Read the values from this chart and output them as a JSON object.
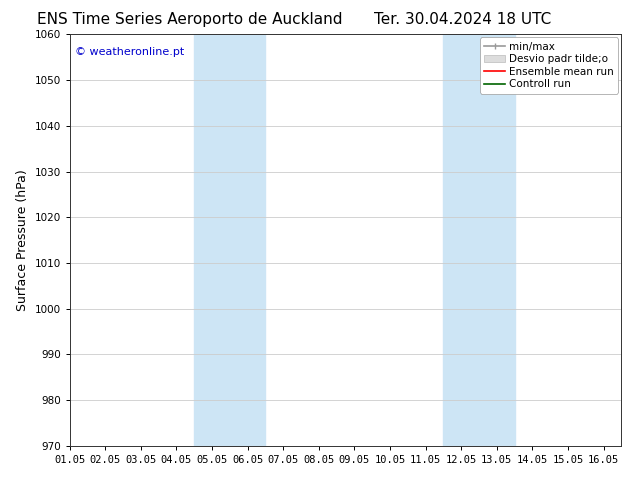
{
  "title_left": "ENS Time Series Aeroporto de Auckland",
  "title_right": "Ter. 30.04.2024 18 UTC",
  "ylabel": "Surface Pressure (hPa)",
  "ylim": [
    970,
    1060
  ],
  "yticks": [
    970,
    980,
    990,
    1000,
    1010,
    1020,
    1030,
    1040,
    1050,
    1060
  ],
  "xlim": [
    0,
    15.5
  ],
  "xtick_labels": [
    "01.05",
    "02.05",
    "03.05",
    "04.05",
    "05.05",
    "06.05",
    "07.05",
    "08.05",
    "09.05",
    "10.05",
    "11.05",
    "12.05",
    "13.05",
    "14.05",
    "15.05",
    "16.05"
  ],
  "xtick_positions": [
    0,
    1,
    2,
    3,
    4,
    5,
    6,
    7,
    8,
    9,
    10,
    11,
    12,
    13,
    14,
    15
  ],
  "shaded_bands": [
    {
      "x_start": 3.5,
      "x_end": 5.5,
      "color": "#cde5f5"
    },
    {
      "x_start": 10.5,
      "x_end": 12.5,
      "color": "#cde5f5"
    }
  ],
  "watermark": "© weatheronline.pt",
  "watermark_color": "#0000cc",
  "background_color": "#ffffff",
  "grid_color": "#cccccc",
  "title_fontsize": 11,
  "tick_fontsize": 7.5,
  "ylabel_fontsize": 9,
  "watermark_fontsize": 8,
  "legend_fontsize": 7.5
}
